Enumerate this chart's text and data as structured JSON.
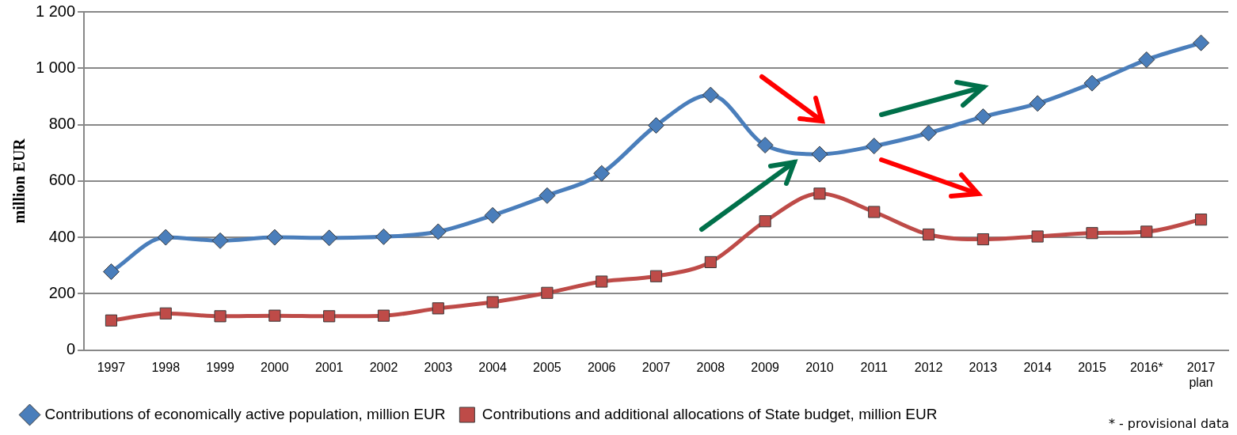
{
  "chart_data": {
    "type": "line",
    "ylabel": "million EUR",
    "categories": [
      "1997",
      "1998",
      "1999",
      "2000",
      "2001",
      "2002",
      "2003",
      "2004",
      "2005",
      "2006",
      "2007",
      "2008",
      "2009",
      "2010",
      "2011",
      "2012",
      "2013",
      "2014",
      "2015",
      "2016*",
      "2017\nplan"
    ],
    "series": [
      {
        "name": "Contributions of economically active population, million EUR",
        "color": "#4a7ebb",
        "marker": "diamond",
        "values": [
          278,
          400,
          388,
          400,
          398,
          402,
          420,
          478,
          548,
          627,
          797,
          905,
          727,
          695,
          724,
          770,
          828,
          875,
          947,
          1030,
          1090
        ]
      },
      {
        "name": "Contributions and additional allocations of State budget, million EUR",
        "color": "#be4b48",
        "marker": "square",
        "values": [
          105,
          130,
          120,
          122,
          120,
          122,
          148,
          170,
          203,
          243,
          262,
          312,
          457,
          555,
          490,
          410,
          393,
          403,
          415,
          420,
          463
        ]
      }
    ],
    "ylim": [
      0,
      1200
    ],
    "yticks": [
      0,
      200,
      400,
      600,
      800,
      {
        "value": 1000,
        "label": "1 000"
      },
      {
        "value": 1200,
        "label": "1 200"
      }
    ],
    "grid": "y",
    "legend": "bottom left",
    "annotations": [
      "* - provisional data"
    ]
  }
}
